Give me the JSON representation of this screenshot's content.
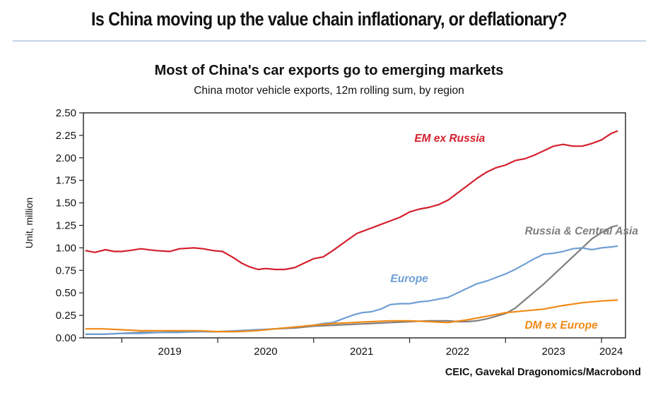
{
  "header": {
    "title": "Is China moving up the value chain inflationary, or deflationary?"
  },
  "colors": {
    "em": "#d4202c",
    "rca": "#7f7f7f",
    "europe": "#6f9fd4",
    "dm": "#f08a16",
    "axis": "#222222",
    "rule": "#c5d4e6"
  },
  "chart_data": {
    "type": "line",
    "title": "Most of China's car exports go to emerging markets",
    "subtitle": "China motor vehicle exports, 12m rolling sum, by region",
    "ylabel": "Unit, million",
    "xlabel": "",
    "source": "CEIC, Gavekal Dragonomics/Macrobond",
    "ylim": [
      0,
      2.5
    ],
    "xlim": [
      2018.6,
      2024.25
    ],
    "yticks": [
      "0.00",
      "0.25",
      "0.50",
      "0.75",
      "1.00",
      "1.25",
      "1.50",
      "1.75",
      "2.00",
      "2.25",
      "2.50"
    ],
    "xticks": [
      "2019",
      "2020",
      "2021",
      "2022",
      "2023",
      "2024"
    ],
    "grid": false,
    "series": [
      {
        "name": "EM ex Russia",
        "key": "em",
        "x": [
          2018.62,
          2018.72,
          2018.83,
          2018.92,
          2019.0,
          2019.08,
          2019.2,
          2019.35,
          2019.5,
          2019.6,
          2019.75,
          2019.85,
          2019.95,
          2020.05,
          2020.15,
          2020.25,
          2020.33,
          2020.42,
          2020.5,
          2020.6,
          2020.7,
          2020.8,
          2020.9,
          2021.0,
          2021.1,
          2021.2,
          2021.33,
          2021.45,
          2021.55,
          2021.65,
          2021.8,
          2021.9,
          2022.0,
          2022.1,
          2022.2,
          2022.3,
          2022.4,
          2022.5,
          2022.6,
          2022.7,
          2022.8,
          2022.9,
          2023.0,
          2023.1,
          2023.2,
          2023.3,
          2023.4,
          2023.5,
          2023.6,
          2023.7,
          2023.8,
          2023.9,
          2024.0,
          2024.1,
          2024.17
        ],
        "values": [
          0.97,
          0.95,
          0.98,
          0.96,
          0.96,
          0.97,
          0.99,
          0.97,
          0.96,
          0.99,
          1.0,
          0.99,
          0.97,
          0.96,
          0.9,
          0.83,
          0.79,
          0.76,
          0.77,
          0.76,
          0.76,
          0.78,
          0.83,
          0.88,
          0.9,
          0.97,
          1.07,
          1.16,
          1.2,
          1.24,
          1.3,
          1.34,
          1.4,
          1.43,
          1.45,
          1.48,
          1.53,
          1.61,
          1.69,
          1.77,
          1.84,
          1.89,
          1.92,
          1.97,
          1.99,
          2.03,
          2.08,
          2.13,
          2.15,
          2.13,
          2.13,
          2.16,
          2.2,
          2.27,
          2.3
        ]
      },
      {
        "name": "Russia & Central Asia",
        "key": "rca",
        "x": [
          2018.62,
          2018.8,
          2019.0,
          2019.2,
          2019.4,
          2019.6,
          2019.8,
          2020.0,
          2020.2,
          2020.4,
          2020.6,
          2020.8,
          2021.0,
          2021.2,
          2021.4,
          2021.6,
          2021.8,
          2022.0,
          2022.2,
          2022.4,
          2022.5,
          2022.6,
          2022.7,
          2022.8,
          2022.9,
          2023.0,
          2023.1,
          2023.2,
          2023.3,
          2023.4,
          2023.5,
          2023.6,
          2023.7,
          2023.8,
          2023.9,
          2024.0,
          2024.1,
          2024.17
        ],
        "values": [
          0.04,
          0.04,
          0.05,
          0.06,
          0.06,
          0.07,
          0.07,
          0.07,
          0.07,
          0.08,
          0.1,
          0.11,
          0.13,
          0.14,
          0.15,
          0.16,
          0.17,
          0.18,
          0.19,
          0.19,
          0.18,
          0.18,
          0.19,
          0.21,
          0.24,
          0.27,
          0.33,
          0.42,
          0.51,
          0.6,
          0.7,
          0.8,
          0.9,
          1.0,
          1.1,
          1.17,
          1.23,
          1.25
        ]
      },
      {
        "name": "Europe",
        "key": "europe",
        "x": [
          2018.62,
          2018.8,
          2019.0,
          2019.2,
          2019.4,
          2019.6,
          2019.8,
          2020.0,
          2020.2,
          2020.4,
          2020.6,
          2020.8,
          2021.0,
          2021.1,
          2021.2,
          2021.3,
          2021.4,
          2021.5,
          2021.6,
          2021.7,
          2021.8,
          2021.9,
          2022.0,
          2022.1,
          2022.2,
          2022.3,
          2022.4,
          2022.5,
          2022.6,
          2022.7,
          2022.8,
          2022.9,
          2023.0,
          2023.1,
          2023.2,
          2023.3,
          2023.4,
          2023.5,
          2023.6,
          2023.7,
          2023.8,
          2023.9,
          2024.0,
          2024.1,
          2024.17
        ],
        "values": [
          0.04,
          0.04,
          0.05,
          0.05,
          0.06,
          0.06,
          0.07,
          0.07,
          0.08,
          0.09,
          0.1,
          0.12,
          0.14,
          0.16,
          0.17,
          0.21,
          0.25,
          0.28,
          0.29,
          0.32,
          0.37,
          0.38,
          0.38,
          0.4,
          0.41,
          0.43,
          0.45,
          0.5,
          0.55,
          0.6,
          0.63,
          0.67,
          0.71,
          0.76,
          0.82,
          0.88,
          0.93,
          0.94,
          0.96,
          0.99,
          1.0,
          0.98,
          1.0,
          1.01,
          1.02
        ]
      },
      {
        "name": "DM ex Europe",
        "key": "dm",
        "x": [
          2018.62,
          2018.8,
          2019.0,
          2019.2,
          2019.4,
          2019.6,
          2019.8,
          2020.0,
          2020.2,
          2020.4,
          2020.6,
          2020.8,
          2021.0,
          2021.2,
          2021.4,
          2021.6,
          2021.8,
          2022.0,
          2022.2,
          2022.4,
          2022.6,
          2022.8,
          2023.0,
          2023.2,
          2023.4,
          2023.6,
          2023.8,
          2024.0,
          2024.17
        ],
        "values": [
          0.1,
          0.1,
          0.09,
          0.08,
          0.08,
          0.08,
          0.08,
          0.07,
          0.07,
          0.08,
          0.1,
          0.12,
          0.14,
          0.16,
          0.17,
          0.18,
          0.19,
          0.19,
          0.18,
          0.17,
          0.2,
          0.24,
          0.28,
          0.3,
          0.32,
          0.36,
          0.39,
          0.41,
          0.42
        ]
      }
    ],
    "annotations": [
      {
        "text": "EM ex Russia",
        "key": "em",
        "x": 2022.05,
        "y": 2.18
      },
      {
        "text": "Russia & Central Asia",
        "key": "rca",
        "x": 2023.2,
        "y": 1.15
      },
      {
        "text": "Europe",
        "key": "europe",
        "x": 2021.8,
        "y": 0.62
      },
      {
        "text": "DM ex Europe",
        "key": "dm",
        "x": 2023.2,
        "y": 0.1
      }
    ]
  }
}
